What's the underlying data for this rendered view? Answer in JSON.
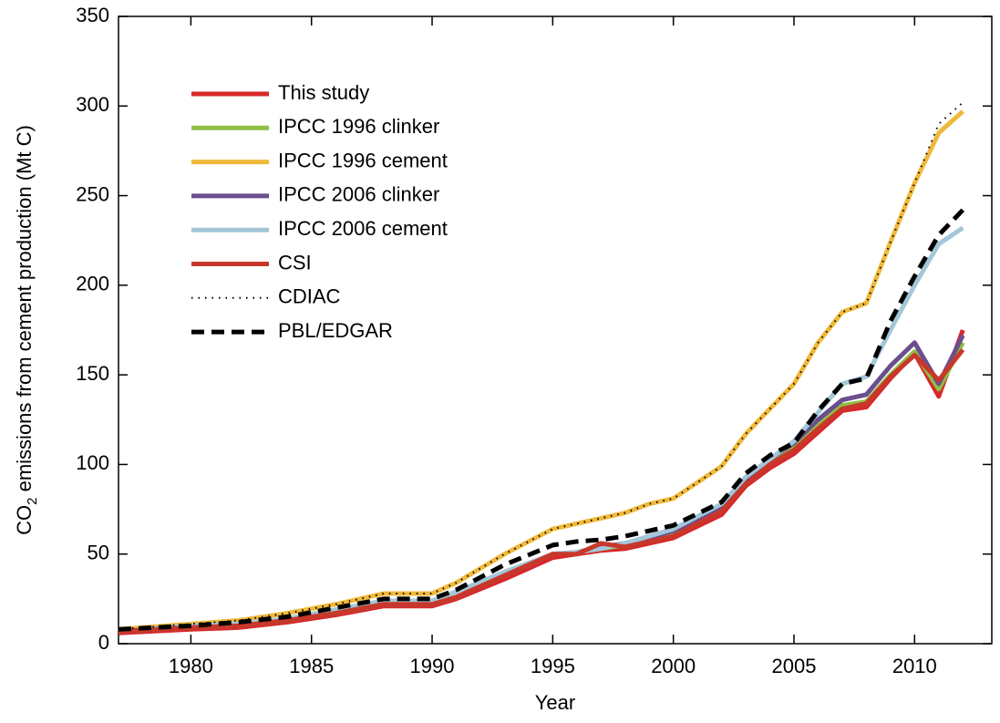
{
  "chart_data": {
    "type": "line",
    "x_label": "Year",
    "y_label": {
      "prefix": "CO",
      "subscript": "2",
      "suffix": " emissions from cement production (Mt C)"
    },
    "x": [
      1977,
      1980,
      1982,
      1984,
      1986,
      1988,
      1990,
      1991,
      1993,
      1995,
      1996,
      1997,
      1998,
      1999,
      2000,
      2002,
      2003,
      2004,
      2005,
      2006,
      2007,
      2008,
      2009,
      2010,
      2011,
      2012
    ],
    "series": [
      {
        "name": "This study",
        "color": "#d7282a",
        "dash": "solid",
        "values": [
          6,
          8,
          9,
          12,
          16,
          21,
          21,
          25,
          36,
          48,
          50,
          52,
          53,
          56,
          59,
          72,
          88,
          98,
          106,
          118,
          130,
          132,
          148,
          162,
          138,
          175
        ]
      },
      {
        "name": "IPCC 1996 clinker",
        "color": "#8fbf44",
        "dash": "solid",
        "values": [
          7,
          9,
          10,
          13,
          17,
          22,
          22,
          26,
          38,
          50,
          51,
          53,
          55,
          58,
          62,
          75,
          90,
          101,
          110,
          122,
          133,
          135,
          150,
          163,
          142,
          168
        ]
      },
      {
        "name": "IPCC 1996 cement",
        "color": "#f0b93a",
        "dash": "solid",
        "values": [
          8,
          11,
          13,
          17,
          22,
          28,
          28,
          34,
          50,
          64,
          67,
          70,
          73,
          78,
          81,
          99,
          117,
          131,
          145,
          168,
          185,
          190,
          224,
          257,
          285,
          297
        ]
      },
      {
        "name": "IPCC 2006 clinker",
        "color": "#6b4e8e",
        "dash": "solid",
        "values": [
          7,
          9,
          10,
          13,
          17,
          22,
          22,
          26,
          38,
          50,
          51,
          54,
          56,
          59,
          63,
          76,
          92,
          103,
          112,
          125,
          136,
          139,
          155,
          168,
          145,
          172
        ]
      },
      {
        "name": "IPCC 2006 cement",
        "color": "#a3c7d8",
        "dash": "solid",
        "values": [
          7,
          10,
          11,
          14,
          19,
          24,
          24,
          29,
          40,
          50,
          51,
          53,
          56,
          60,
          64,
          78,
          93,
          103,
          113,
          129,
          145,
          149,
          175,
          200,
          223,
          232
        ]
      },
      {
        "name": "CSI",
        "color": "#c8382a",
        "dash": "solid",
        "values": [
          7,
          9,
          10,
          13,
          17,
          22,
          22,
          26,
          38,
          50,
          50,
          56,
          54,
          57,
          60,
          74,
          89,
          100,
          108,
          120,
          131,
          134,
          149,
          161,
          147,
          164
        ]
      },
      {
        "name": "CDIAC",
        "color": "#000000",
        "dash": "dotted",
        "values": [
          8,
          11,
          13,
          17,
          22,
          28,
          28,
          34,
          50,
          64,
          67,
          70,
          73,
          78,
          81,
          99,
          117,
          131,
          145,
          168,
          185,
          190,
          224,
          257,
          290,
          302
        ]
      },
      {
        "name": "PBL/EDGAR",
        "color": "#000000",
        "dash": "dashed",
        "values": [
          8,
          10,
          12,
          15,
          20,
          25,
          25,
          30,
          44,
          55,
          57,
          58,
          60,
          63,
          66,
          79,
          95,
          105,
          112,
          130,
          145,
          148,
          180,
          205,
          228,
          242
        ]
      }
    ],
    "xlim": [
      1977,
      2013.2
    ],
    "xticks": [
      1980,
      1985,
      1990,
      1995,
      2000,
      2005,
      2010
    ],
    "ylim": [
      0,
      350
    ],
    "yticks": [
      0,
      50,
      100,
      150,
      200,
      250,
      300,
      350
    ],
    "legend": "upper left",
    "grid": false
  }
}
